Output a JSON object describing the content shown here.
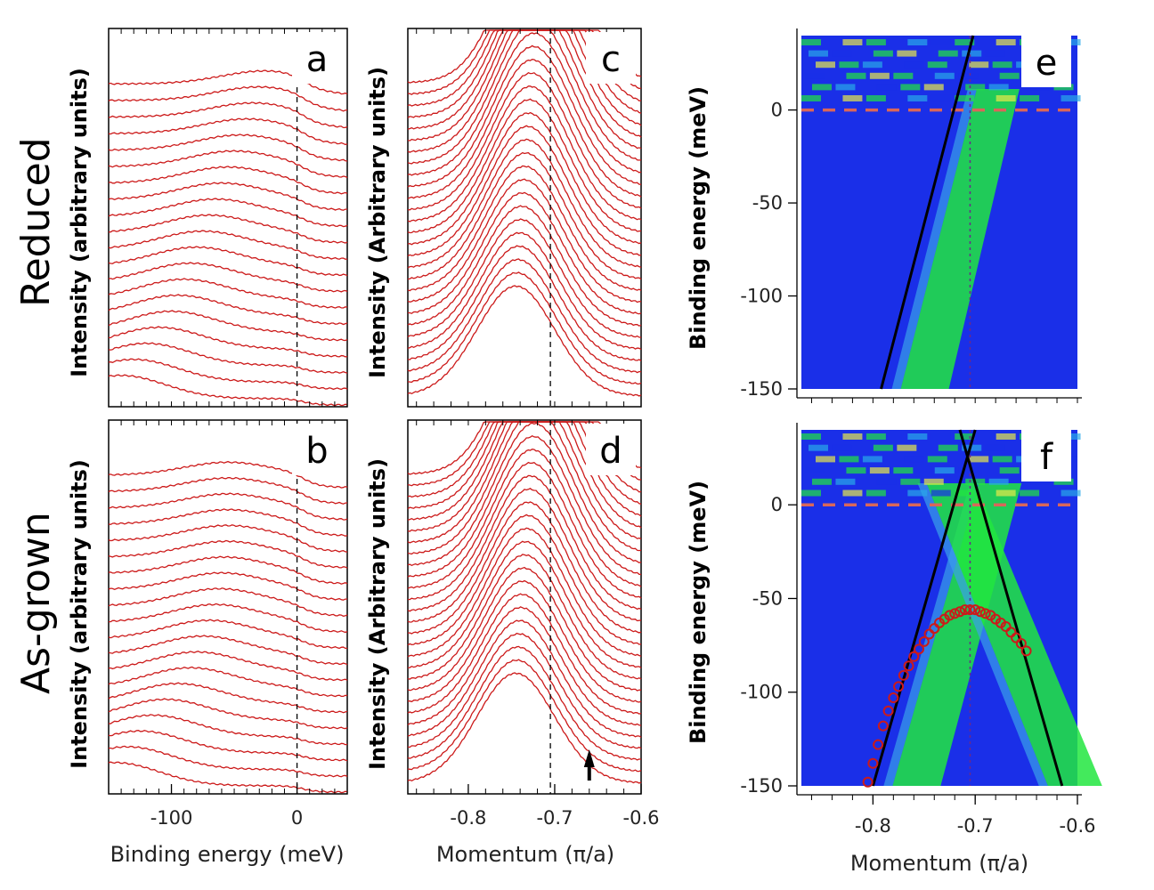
{
  "row_titles": {
    "top": "Reduced",
    "bottom": "As-grown"
  },
  "intensity_label_edc": "Intensity (arbitrary units)",
  "intensity_label_mdc": "Intensity (Arbitrary units)",
  "colors": {
    "curve": "#cc1a1a",
    "map_bg": "#1a2fe8",
    "map_band": "#22e640",
    "fermi_line": "#d9675a",
    "fit_line": "#000000",
    "points": "#cc1a1a"
  },
  "chart_data": [
    {
      "panel": "a",
      "type": "line",
      "title": "",
      "xlabel": "Binding energy (meV)",
      "ylabel": "Intensity (arbitrary units)",
      "xlim": [
        -150,
        40
      ],
      "xticks": [
        -100,
        0
      ],
      "marker_x": 0,
      "description_series": "stacked energy distribution curves, peak dispersing from ~-110 meV (low) to ~-20 meV (high) curves",
      "n_curves": 20,
      "peak_positions": [
        -140,
        -130,
        -120,
        -110,
        -100,
        -95,
        -90,
        -85,
        -80,
        -75,
        -70,
        -65,
        -60,
        -55,
        -50,
        -45,
        -40,
        -35,
        -30,
        -25
      ]
    },
    {
      "panel": "b",
      "type": "line",
      "title": "",
      "xlabel": "Binding energy (meV)",
      "ylabel": "Intensity (arbitrary units)",
      "xlim": [
        -150,
        40
      ],
      "xticks": [
        -100,
        0
      ],
      "marker_x": 0,
      "n_curves": 20,
      "peak_positions": [
        -145,
        -135,
        -125,
        -115,
        -105,
        -95,
        -85,
        -80,
        -75,
        -70,
        -65,
        -62,
        -60,
        -58,
        -56,
        -55,
        -55,
        -55,
        -55,
        -55
      ]
    },
    {
      "panel": "c",
      "type": "line",
      "title": "",
      "xlabel": "Momentum (π/a)",
      "ylabel": "Intensity (Arbitrary units)",
      "xlim": [
        -0.87,
        -0.6
      ],
      "xticks": [
        -0.8,
        -0.7,
        -0.6
      ],
      "marker_x": -0.705,
      "n_curves": 28,
      "peak_start": -0.745,
      "peak_end": -0.715
    },
    {
      "panel": "d",
      "type": "line",
      "title": "",
      "xlabel": "Momentum (π/a)",
      "ylabel": "Intensity (Arbitrary units)",
      "xlim": [
        -0.87,
        -0.6
      ],
      "xticks": [
        -0.8,
        -0.7,
        -0.6
      ],
      "marker_x": -0.705,
      "n_curves": 28,
      "peak_start": -0.745,
      "peak_end": -0.715,
      "arrow_x": -0.66
    },
    {
      "panel": "e",
      "type": "heatmap",
      "title": "",
      "xlabel": "",
      "ylabel": "Binding energy (meV)",
      "xlim": [
        -0.87,
        -0.6
      ],
      "ylim": [
        -150,
        40
      ],
      "yticks": [
        0,
        -50,
        -100,
        -150
      ],
      "fermi_level": 0,
      "kf": -0.705,
      "fit_line": {
        "x": [
          -0.792,
          -0.702
        ],
        "y": [
          -150,
          40
        ]
      }
    },
    {
      "panel": "f",
      "type": "heatmap",
      "title": "",
      "xlabel": "Momentum (π/a)",
      "ylabel": "Binding energy (meV)",
      "xlim": [
        -0.87,
        -0.6
      ],
      "ylim": [
        -150,
        40
      ],
      "yticks": [
        0,
        -50,
        -100,
        -150
      ],
      "xticks": [
        -0.8,
        -0.7,
        -0.6
      ],
      "fermi_level": 0,
      "kf": -0.705,
      "fit_lines": [
        {
          "x": [
            -0.8,
            -0.7
          ],
          "y": [
            -150,
            40
          ]
        },
        {
          "x": [
            -0.615,
            -0.715
          ],
          "y": [
            -150,
            40
          ]
        }
      ],
      "dispersion_points": {
        "x": [
          -0.805,
          -0.8,
          -0.795,
          -0.79,
          -0.785,
          -0.78,
          -0.775,
          -0.77,
          -0.765,
          -0.76,
          -0.755,
          -0.75,
          -0.745,
          -0.74,
          -0.735,
          -0.73,
          -0.725,
          -0.72,
          -0.715,
          -0.71,
          -0.705,
          -0.7,
          -0.695,
          -0.69,
          -0.685,
          -0.68,
          -0.675,
          -0.67,
          -0.665,
          -0.66,
          -0.655,
          -0.65
        ],
        "y": [
          -148,
          -138,
          -128,
          -118,
          -110,
          -103,
          -97,
          -91,
          -86,
          -81,
          -77,
          -73,
          -69,
          -66,
          -63,
          -61,
          -59,
          -58,
          -57,
          -56,
          -56,
          -56,
          -57,
          -58,
          -59,
          -61,
          -63,
          -65,
          -68,
          -71,
          -74,
          -78
        ]
      }
    }
  ]
}
